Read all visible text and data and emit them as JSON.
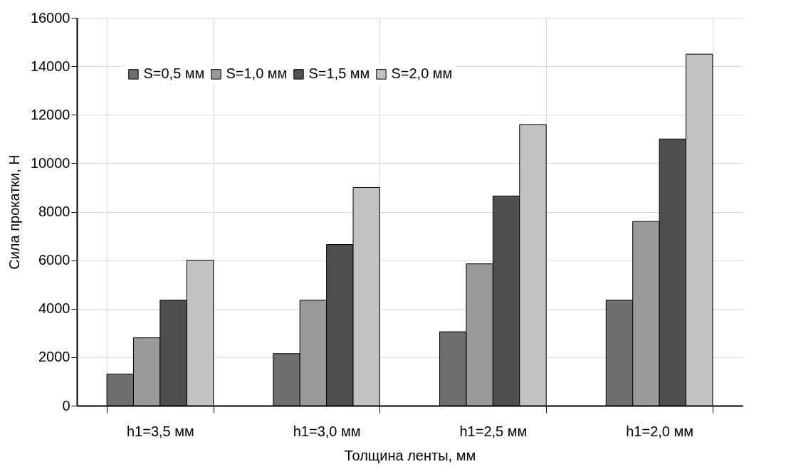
{
  "chart_data": {
    "type": "bar",
    "xlabel": "Толщина ленты, мм",
    "ylabel": "Сила прокатки, Н",
    "categories": [
      "h1=3,5 мм",
      "h1=3,0 мм",
      "h1=2,5 мм",
      "h1=2,0 мм"
    ],
    "series": [
      {
        "name": "S=0,5 мм",
        "color": "#6e6e6e",
        "values": [
          1300,
          2150,
          3050,
          4350
        ]
      },
      {
        "name": "S=1,0 мм",
        "color": "#9a9a9a",
        "values": [
          2800,
          4350,
          5850,
          7600
        ]
      },
      {
        "name": "S=1,5 мм",
        "color": "#4f4f4f",
        "values": [
          4350,
          6650,
          8650,
          11000
        ]
      },
      {
        "name": "S=2,0 мм",
        "color": "#c2c2c2",
        "values": [
          6000,
          9000,
          11600,
          14500
        ]
      }
    ],
    "ylim": [
      0,
      16000
    ],
    "yticks": [
      0,
      2000,
      4000,
      6000,
      8000,
      10000,
      12000,
      14000,
      16000
    ],
    "grid": true,
    "legend": "top"
  }
}
